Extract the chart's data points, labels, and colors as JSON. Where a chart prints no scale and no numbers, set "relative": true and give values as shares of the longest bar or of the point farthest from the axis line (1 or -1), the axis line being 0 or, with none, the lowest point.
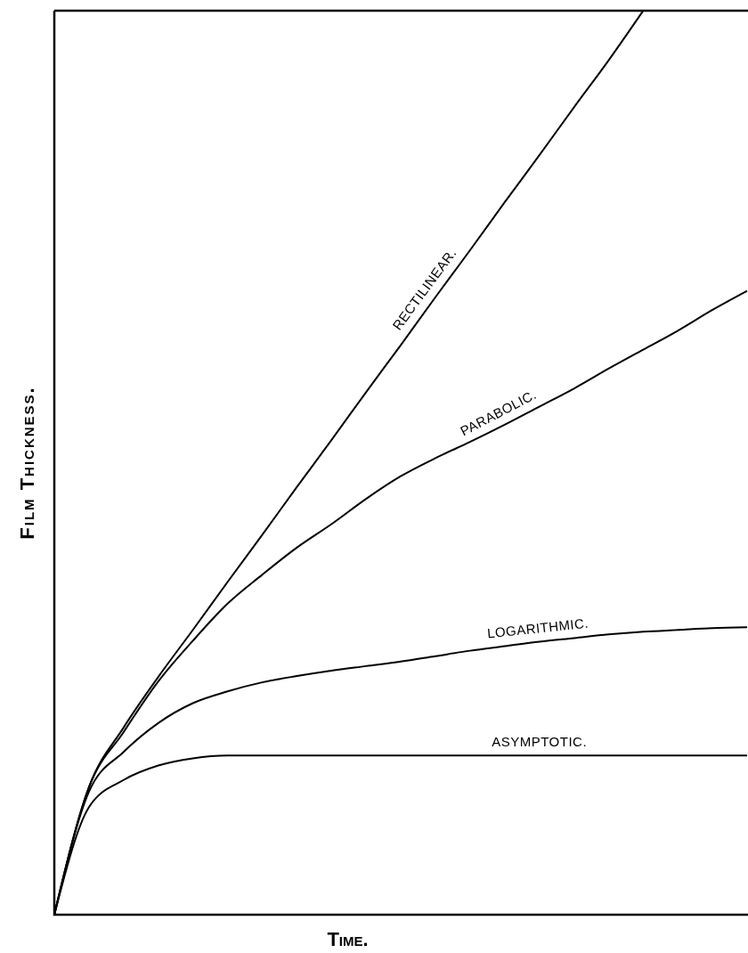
{
  "chart_data": {
    "type": "line",
    "relative": true,
    "xlabel": "Time.",
    "ylabel": "Film Thickness.",
    "categories": [
      null,
      null,
      null,
      null,
      null,
      null,
      null,
      null,
      null,
      null,
      null,
      null,
      null,
      null,
      null,
      null,
      null,
      null,
      null,
      null,
      null
    ],
    "series": [
      {
        "name": "RECTILINEAR.",
        "color": "#000000",
        "values": [
          0,
          0.141,
          0.207,
          0.263,
          0.315,
          0.368,
          0.42,
          0.473,
          0.525,
          0.578,
          0.63,
          0.683,
          0.735,
          0.788,
          0.84,
          0.893,
          0.945,
          1,
          null,
          null,
          null
        ]
      },
      {
        "name": "PARABOLIC.",
        "color": "#000000",
        "values": [
          0,
          0.141,
          0.202,
          0.258,
          0.303,
          0.344,
          0.376,
          0.406,
          0.432,
          0.46,
          0.485,
          0.505,
          0.523,
          0.542,
          0.562,
          0.582,
          0.604,
          0.625,
          0.646,
          0.669,
          0.69
        ]
      },
      {
        "name": "LOGARITHMIC.",
        "color": "#000000",
        "values": [
          0,
          0.136,
          0.18,
          0.212,
          0.234,
          0.247,
          0.257,
          0.264,
          0.27,
          0.275,
          0.28,
          0.286,
          0.292,
          0.297,
          0.302,
          0.306,
          0.31,
          0.313,
          0.315,
          0.317,
          0.318
        ]
      },
      {
        "name": "ASYMPTOTIC.",
        "color": "#000000",
        "values": [
          0,
          0.119,
          0.149,
          0.165,
          0.173,
          0.176,
          0.176,
          0.176,
          0.176,
          0.176,
          0.176,
          0.176,
          0.176,
          0.176,
          0.176,
          0.176,
          0.176,
          0.176,
          0.176,
          0.176,
          0.176
        ]
      }
    ]
  }
}
